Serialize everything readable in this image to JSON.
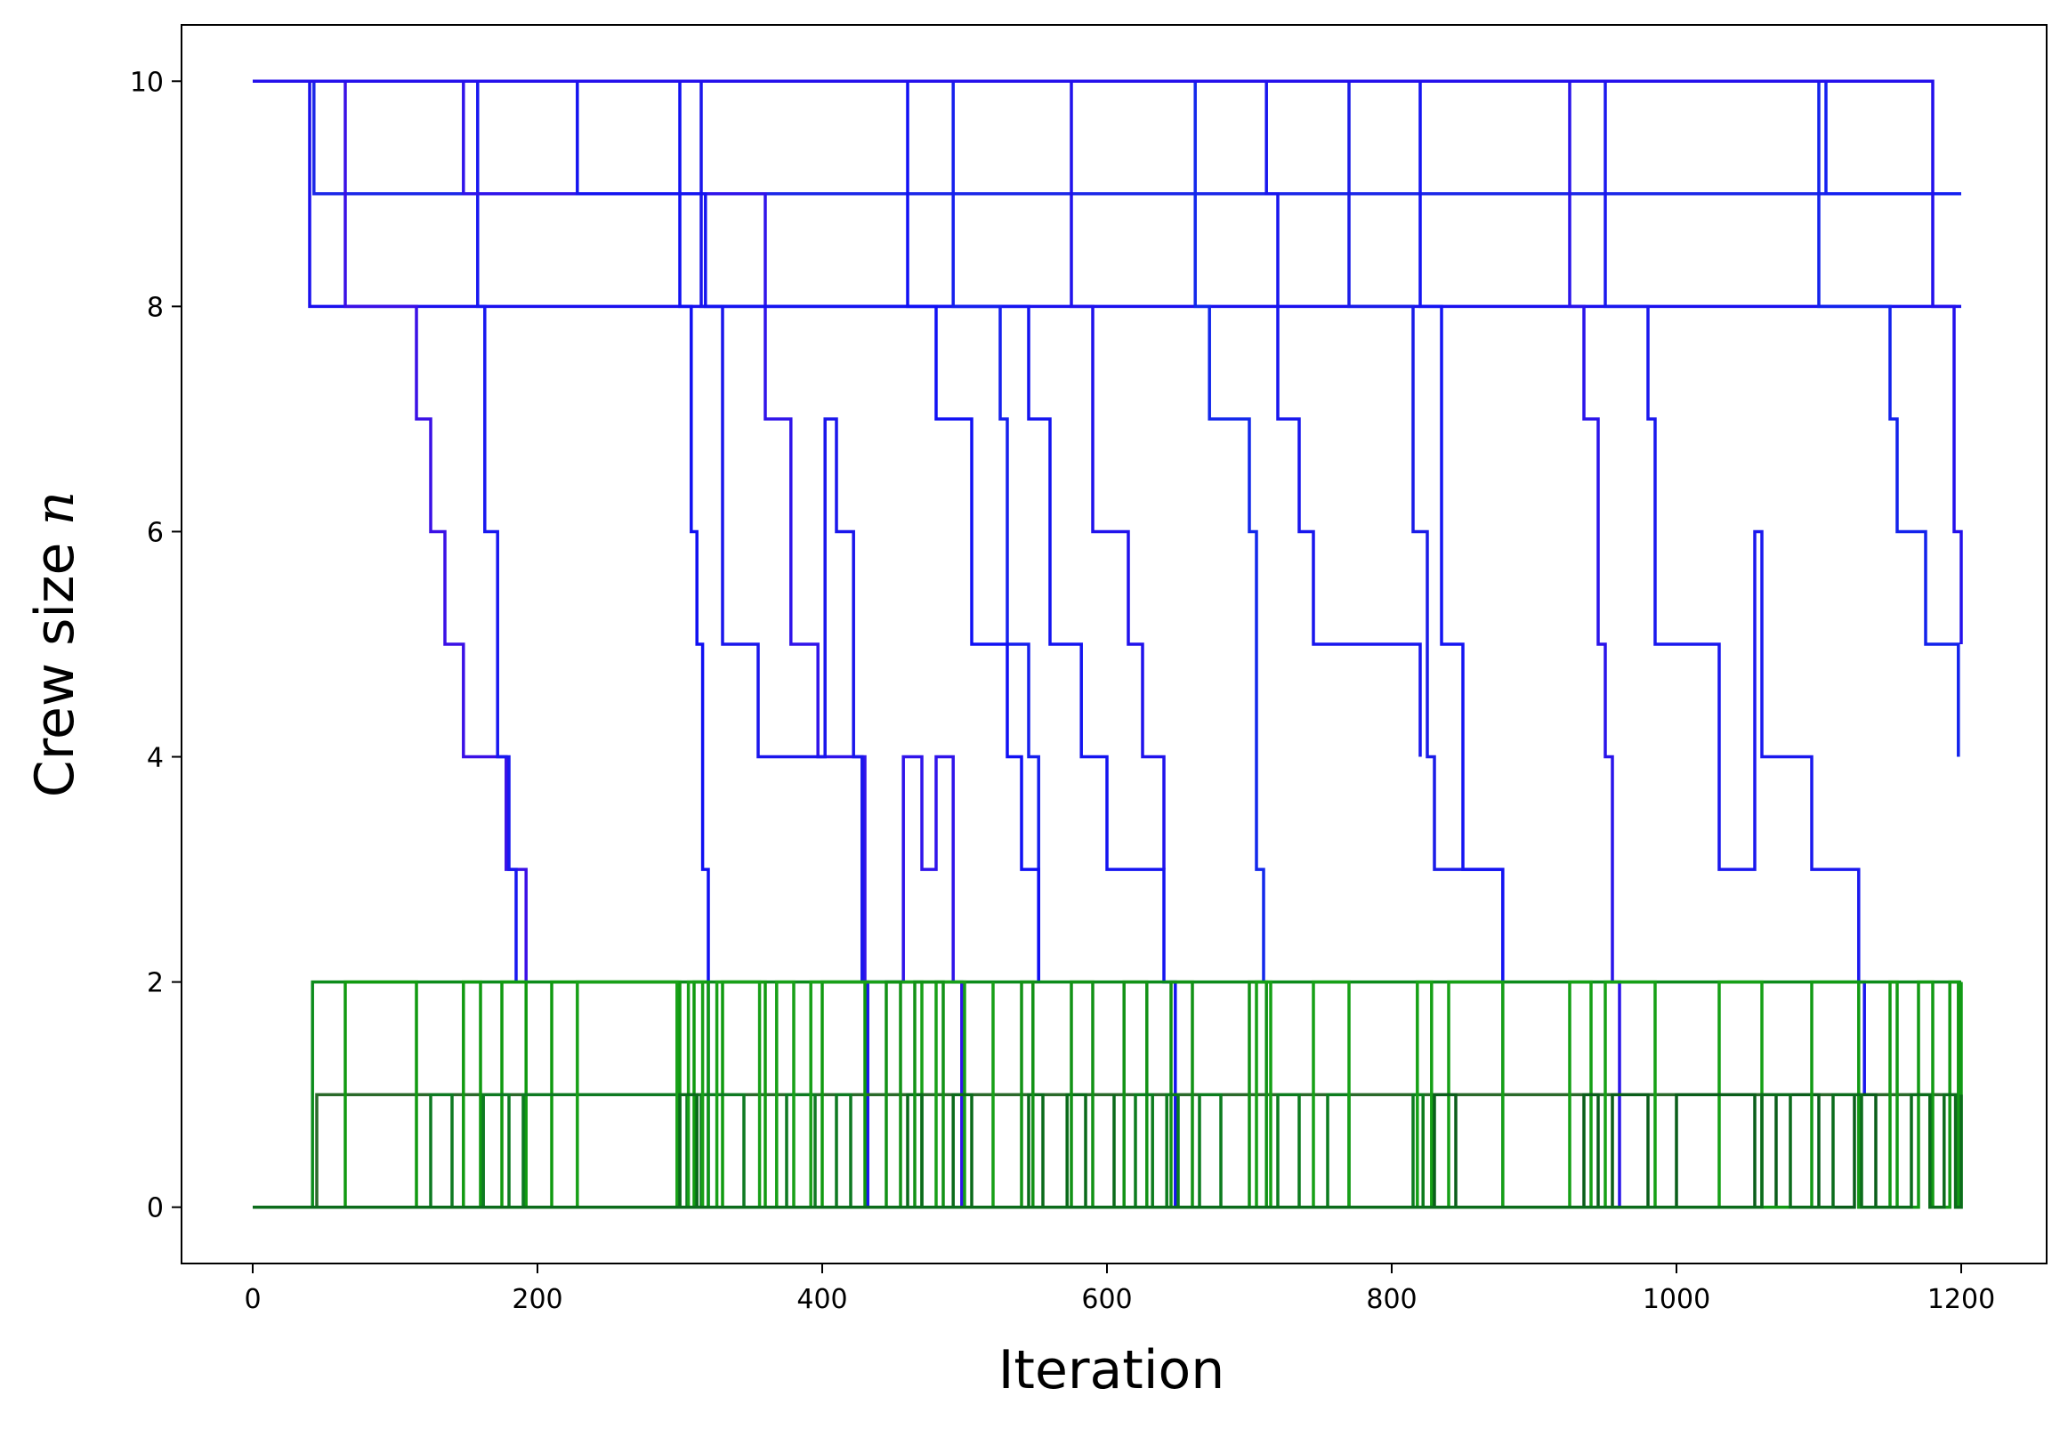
{
  "chart_data": {
    "type": "line",
    "subtype": "step",
    "title": "",
    "xlabel": "Iteration",
    "ylabel": "Crew size",
    "ylabel_symbol": "n",
    "xlim": [
      -50,
      1260
    ],
    "ylim": [
      -0.5,
      10.5
    ],
    "xticks": [
      0,
      200,
      400,
      600,
      800,
      1000,
      1200
    ],
    "yticks": [
      0,
      2,
      4,
      6,
      8,
      10
    ],
    "grid": false,
    "legend": "none",
    "series": [
      {
        "group": "blue",
        "color": "#1a10ee",
        "x": [
          0,
          40,
          1200
        ],
        "y": [
          10,
          8,
          8
        ]
      },
      {
        "group": "blue",
        "color": "#1c28e8",
        "x": [
          0,
          43,
          1200
        ],
        "y": [
          10,
          9,
          9
        ]
      },
      {
        "group": "blue",
        "color": "#3a10e6",
        "x": [
          0,
          65,
          115,
          125,
          135,
          148,
          163,
          178,
          188,
          192
        ],
        "y": [
          10,
          8,
          7,
          6,
          5,
          4,
          4,
          3,
          3,
          2
        ]
      },
      {
        "group": "blue",
        "color": "#1818f0",
        "x": [
          0,
          158,
          163,
          172,
          180,
          185
        ],
        "y": [
          10,
          8,
          6,
          4,
          3,
          2
        ]
      },
      {
        "group": "blue",
        "color": "#3014ea",
        "x": [
          0,
          148,
          360,
          378,
          397,
          418,
          430,
          457,
          470,
          480,
          492,
          498
        ],
        "y": [
          10,
          9,
          7,
          5,
          4,
          4,
          2,
          4,
          3,
          4,
          2,
          0
        ]
      },
      {
        "group": "blue",
        "color": "#1010f2",
        "x": [
          0,
          300,
          308,
          312,
          316,
          320
        ],
        "y": [
          10,
          8,
          6,
          5,
          3,
          0
        ]
      },
      {
        "group": "blue",
        "color": "#1a16ec",
        "x": [
          0,
          315,
          330,
          355,
          402,
          410,
          422,
          428,
          432
        ],
        "y": [
          10,
          8,
          5,
          4,
          7,
          6,
          4,
          2,
          0
        ]
      },
      {
        "group": "blue",
        "color": "#1414f0",
        "x": [
          0,
          228,
          318,
          545,
          560,
          582,
          600,
          625,
          640,
          648
        ],
        "y": [
          10,
          9,
          8,
          7,
          5,
          4,
          3,
          3,
          2,
          0
        ]
      },
      {
        "group": "blue",
        "color": "#1620ee",
        "x": [
          0,
          492,
          525,
          530,
          545,
          552
        ],
        "y": [
          10,
          8,
          7,
          5,
          4,
          2
        ]
      },
      {
        "group": "blue",
        "color": "#1010f4",
        "x": [
          0,
          460,
          480,
          505,
          530,
          540,
          552
        ],
        "y": [
          10,
          8,
          7,
          5,
          4,
          3,
          2
        ]
      },
      {
        "group": "blue",
        "color": "#2012ec",
        "x": [
          0,
          575,
          590,
          615,
          625,
          640
        ],
        "y": [
          10,
          8,
          6,
          5,
          4,
          3
        ]
      },
      {
        "group": "blue",
        "color": "#1228ec",
        "x": [
          0,
          662,
          672,
          700,
          705,
          710
        ],
        "y": [
          10,
          8,
          7,
          6,
          3,
          2
        ]
      },
      {
        "group": "blue",
        "color": "#1816ee",
        "x": [
          0,
          712,
          720,
          735,
          745,
          755,
          820
        ],
        "y": [
          10,
          9,
          7,
          6,
          5,
          5,
          4
        ]
      },
      {
        "group": "blue",
        "color": "#1a1ce8",
        "x": [
          0,
          770,
          815,
          825,
          830,
          845,
          878
        ],
        "y": [
          10,
          8,
          6,
          4,
          3,
          3,
          2
        ]
      },
      {
        "group": "blue",
        "color": "#1414f2",
        "x": [
          0,
          820,
          835,
          850,
          878
        ],
        "y": [
          10,
          8,
          5,
          3,
          0
        ]
      },
      {
        "group": "blue",
        "color": "#2a14ea",
        "x": [
          0,
          925,
          935,
          945,
          950,
          955,
          960
        ],
        "y": [
          10,
          8,
          7,
          5,
          4,
          2,
          0
        ]
      },
      {
        "group": "blue",
        "color": "#1a18ee",
        "x": [
          0,
          950,
          980,
          985,
          1030,
          1055,
          1060,
          1095,
          1128,
          1132
        ],
        "y": [
          10,
          8,
          7,
          5,
          3,
          6,
          4,
          3,
          2,
          1
        ]
      },
      {
        "group": "blue",
        "color": "#1222ec",
        "x": [
          0,
          1100,
          1150,
          1155,
          1170,
          1175,
          1192,
          1198
        ],
        "y": [
          10,
          8,
          7,
          6,
          6,
          5,
          5,
          4
        ]
      },
      {
        "group": "blue",
        "color": "#1420f0",
        "x": [
          0,
          1105,
          1200
        ],
        "y": [
          10,
          9,
          9
        ]
      },
      {
        "group": "blue",
        "color": "#2410ec",
        "x": [
          0,
          1180,
          1195,
          1200
        ],
        "y": [
          10,
          8,
          6,
          5
        ]
      },
      {
        "group": "green",
        "color": "#0c8c1c",
        "x": [
          0,
          42,
          1200
        ],
        "y": [
          0,
          2,
          2
        ]
      },
      {
        "group": "green",
        "color": "#2a6a2a",
        "x": [
          0,
          45,
          1200
        ],
        "y": [
          0,
          1,
          1
        ]
      },
      {
        "group": "green",
        "color": "#109a10",
        "x": [
          0,
          65,
          115,
          148,
          160,
          175,
          192,
          210,
          300,
          310,
          320,
          330,
          360,
          400,
          430
        ],
        "y": [
          0,
          2,
          0,
          2,
          0,
          2,
          0,
          2,
          0,
          2,
          0,
          2,
          0,
          2,
          0
        ]
      },
      {
        "group": "green",
        "color": "#0e7a22",
        "x": [
          0,
          125,
          140,
          162,
          180,
          190,
          305,
          315,
          345,
          375,
          395,
          410,
          420
        ],
        "y": [
          0,
          1,
          0,
          1,
          0,
          1,
          0,
          1,
          0,
          1,
          0,
          1,
          0
        ]
      },
      {
        "group": "green",
        "color": "#18a018",
        "x": [
          0,
          228,
          298,
          306,
          316,
          326,
          356,
          368,
          380,
          392,
          470,
          480,
          500,
          520
        ],
        "y": [
          0,
          2,
          0,
          2,
          0,
          2,
          0,
          2,
          0,
          2,
          0,
          2,
          0,
          2
        ]
      },
      {
        "group": "green",
        "color": "#0a6a1a",
        "x": [
          0,
          300,
          312,
          460,
          470,
          492,
          505,
          545,
          555,
          572,
          585,
          605
        ],
        "y": [
          0,
          1,
          0,
          1,
          0,
          1,
          0,
          1,
          0,
          1,
          0,
          1
        ]
      },
      {
        "group": "green",
        "color": "#129216",
        "x": [
          0,
          445,
          455,
          465,
          485,
          540,
          548,
          575,
          590,
          612,
          628,
          645,
          660,
          700,
          712
        ],
        "y": [
          0,
          2,
          0,
          2,
          0,
          2,
          0,
          2,
          0,
          2,
          0,
          2,
          0,
          2,
          0
        ]
      },
      {
        "group": "green",
        "color": "#0c7c1e",
        "x": [
          0,
          620,
          632,
          642,
          650,
          665,
          680,
          720,
          735,
          755,
          770,
          815,
          822
        ],
        "y": [
          0,
          1,
          0,
          1,
          0,
          1,
          0,
          1,
          0,
          1,
          0,
          1,
          0
        ]
      },
      {
        "group": "green",
        "color": "#16a016",
        "x": [
          0,
          705,
          715,
          745,
          770,
          818,
          828,
          840,
          878,
          925,
          940,
          950,
          985,
          1030,
          1060
        ],
        "y": [
          0,
          2,
          0,
          2,
          0,
          2,
          0,
          2,
          0,
          2,
          0,
          2,
          0,
          2,
          0
        ]
      },
      {
        "group": "green",
        "color": "#0a5e1a",
        "x": [
          0,
          830,
          845,
          935,
          945,
          955,
          980,
          1000,
          1055,
          1070,
          1100,
          1125,
          1140
        ],
        "y": [
          0,
          1,
          0,
          1,
          0,
          1,
          0,
          1,
          0,
          1,
          0,
          1,
          0
        ]
      },
      {
        "group": "green",
        "color": "#129a14",
        "x": [
          0,
          1095,
          1128,
          1150,
          1155,
          1170,
          1180,
          1192,
          1198,
          1200
        ],
        "y": [
          0,
          2,
          0,
          2,
          0,
          2,
          0,
          2,
          0,
          2
        ]
      },
      {
        "group": "green",
        "color": "#0c6c1c",
        "x": [
          0,
          1060,
          1080,
          1110,
          1130,
          1165,
          1178,
          1188,
          1196,
          1200
        ],
        "y": [
          0,
          1,
          0,
          1,
          0,
          1,
          0,
          1,
          0,
          1
        ]
      }
    ]
  }
}
